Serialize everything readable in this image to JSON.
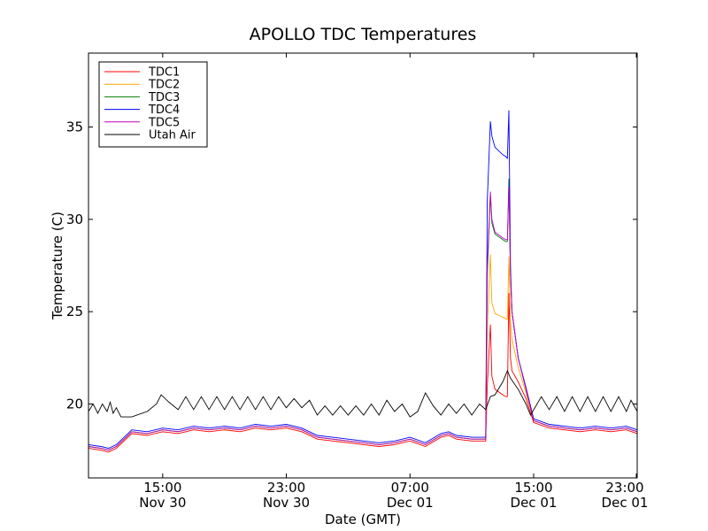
{
  "chart_data": {
    "type": "line",
    "title": "APOLLO TDC Temperatures",
    "xlabel": "Date (GMT)",
    "ylabel": "Temperature (C)",
    "ylim": [
      16,
      39
    ],
    "xlim": [
      10.2,
      45.7
    ],
    "x_unit": "hours since Nov 30 00:00 GMT",
    "yticks": [
      20,
      25,
      30,
      35
    ],
    "xticks": [
      {
        "x": 15,
        "time": "15:00",
        "date": "Nov 30"
      },
      {
        "x": 23,
        "time": "23:00",
        "date": "Nov 30"
      },
      {
        "x": 31,
        "time": "07:00",
        "date": "Dec 01"
      },
      {
        "x": 39,
        "time": "15:00",
        "date": "Dec 01"
      },
      {
        "x": 47,
        "time": "23:00",
        "date": "Dec 01"
      }
    ],
    "legend_position": "top-left",
    "series": [
      {
        "name": "TDC1",
        "color": "#ff0000",
        "x": [
          10.2,
          11.0,
          11.5,
          12.0,
          13.0,
          14.0,
          15.0,
          16.0,
          17.0,
          18.0,
          19.0,
          20.0,
          21.0,
          22.0,
          23.0,
          24.0,
          25.0,
          26.0,
          27.0,
          28.0,
          29.0,
          30.0,
          31.0,
          32.0,
          33.0,
          33.5,
          34.0,
          35.0,
          35.9,
          36.0,
          36.2,
          36.3,
          36.5,
          37.0,
          37.2,
          37.3,
          37.4,
          37.5,
          37.6,
          38.0,
          38.5,
          39.0,
          40.0,
          41.0,
          42.0,
          43.0,
          44.0,
          45.0,
          45.7
        ],
        "y": [
          17.6,
          17.5,
          17.4,
          17.6,
          18.4,
          18.3,
          18.5,
          18.4,
          18.6,
          18.5,
          18.6,
          18.5,
          18.7,
          18.6,
          18.7,
          18.5,
          18.1,
          18.0,
          17.9,
          17.8,
          17.7,
          17.8,
          18.0,
          17.7,
          18.2,
          18.3,
          18.1,
          18.0,
          18.0,
          21.0,
          24.3,
          21.5,
          20.8,
          20.5,
          20.4,
          20.4,
          26.0,
          22.5,
          21.8,
          21.2,
          20.3,
          19.0,
          18.7,
          18.6,
          18.5,
          18.6,
          18.5,
          18.6,
          18.4
        ]
      },
      {
        "name": "TDC2",
        "color": "#ffa500",
        "x": [
          10.2,
          11.0,
          11.5,
          12.0,
          13.0,
          14.0,
          15.0,
          16.0,
          17.0,
          18.0,
          19.0,
          20.0,
          21.0,
          22.0,
          23.0,
          24.0,
          25.0,
          26.0,
          27.0,
          28.0,
          29.0,
          30.0,
          31.0,
          32.0,
          33.0,
          33.5,
          34.0,
          35.0,
          35.9,
          36.0,
          36.2,
          36.3,
          36.5,
          37.0,
          37.2,
          37.3,
          37.4,
          37.5,
          37.6,
          38.0,
          38.5,
          39.0,
          40.0,
          41.0,
          42.0,
          43.0,
          44.0,
          45.0,
          45.7
        ],
        "y": [
          17.7,
          17.6,
          17.5,
          17.7,
          18.5,
          18.4,
          18.6,
          18.5,
          18.7,
          18.6,
          18.7,
          18.6,
          18.8,
          18.7,
          18.8,
          18.6,
          18.2,
          18.1,
          18.0,
          17.9,
          17.8,
          17.9,
          18.1,
          17.8,
          18.3,
          18.4,
          18.2,
          18.1,
          18.1,
          24.0,
          28.1,
          25.5,
          24.9,
          24.7,
          24.6,
          24.6,
          28.0,
          24.5,
          23.5,
          22.0,
          20.6,
          19.1,
          18.8,
          18.7,
          18.6,
          18.7,
          18.6,
          18.7,
          18.5
        ]
      },
      {
        "name": "TDC3",
        "color": "#008000",
        "x": [
          10.2,
          11.0,
          11.5,
          12.0,
          13.0,
          14.0,
          15.0,
          16.0,
          17.0,
          18.0,
          19.0,
          20.0,
          21.0,
          22.0,
          23.0,
          24.0,
          25.0,
          26.0,
          27.0,
          28.0,
          29.0,
          30.0,
          31.0,
          32.0,
          33.0,
          33.5,
          34.0,
          35.0,
          35.9,
          36.0,
          36.2,
          36.3,
          36.5,
          37.0,
          37.2,
          37.3,
          37.4,
          37.5,
          37.6,
          38.0,
          38.5,
          39.0,
          40.0,
          41.0,
          42.0,
          43.0,
          44.0,
          45.0,
          45.7
        ],
        "y": [
          17.7,
          17.6,
          17.5,
          17.7,
          18.5,
          18.4,
          18.6,
          18.5,
          18.7,
          18.6,
          18.7,
          18.6,
          18.8,
          18.7,
          18.8,
          18.6,
          18.2,
          18.1,
          18.0,
          17.9,
          17.8,
          17.9,
          18.1,
          17.8,
          18.3,
          18.4,
          18.2,
          18.1,
          18.1,
          27.0,
          31.3,
          29.8,
          29.2,
          28.9,
          28.8,
          28.8,
          32.2,
          27.0,
          25.0,
          22.5,
          20.8,
          19.1,
          18.8,
          18.7,
          18.6,
          18.7,
          18.6,
          18.7,
          18.5
        ]
      },
      {
        "name": "TDC4",
        "color": "#0000ff",
        "x": [
          10.2,
          11.0,
          11.5,
          12.0,
          13.0,
          14.0,
          15.0,
          16.0,
          17.0,
          18.0,
          19.0,
          20.0,
          21.0,
          22.0,
          23.0,
          24.0,
          25.0,
          26.0,
          27.0,
          28.0,
          29.0,
          30.0,
          31.0,
          32.0,
          33.0,
          33.5,
          34.0,
          35.0,
          35.9,
          36.0,
          36.2,
          36.3,
          36.5,
          37.0,
          37.2,
          37.3,
          37.4,
          37.5,
          37.6,
          38.0,
          38.5,
          39.0,
          40.0,
          41.0,
          42.0,
          43.0,
          44.0,
          45.0,
          45.7
        ],
        "y": [
          17.8,
          17.7,
          17.6,
          17.8,
          18.6,
          18.5,
          18.7,
          18.6,
          18.8,
          18.7,
          18.8,
          18.7,
          18.9,
          18.8,
          18.9,
          18.7,
          18.3,
          18.2,
          18.1,
          18.0,
          17.9,
          18.0,
          18.2,
          17.9,
          18.4,
          18.5,
          18.3,
          18.2,
          18.2,
          31.0,
          35.3,
          34.5,
          33.9,
          33.5,
          33.4,
          33.3,
          35.9,
          27.5,
          25.0,
          22.5,
          20.9,
          19.2,
          18.9,
          18.8,
          18.7,
          18.8,
          18.7,
          18.8,
          18.6
        ]
      },
      {
        "name": "TDC5",
        "color": "#bf00bf",
        "x": [
          10.2,
          11.0,
          11.5,
          12.0,
          13.0,
          14.0,
          15.0,
          16.0,
          17.0,
          18.0,
          19.0,
          20.0,
          21.0,
          22.0,
          23.0,
          24.0,
          25.0,
          26.0,
          27.0,
          28.0,
          29.0,
          30.0,
          31.0,
          32.0,
          33.0,
          33.5,
          34.0,
          35.0,
          35.9,
          36.0,
          36.2,
          36.3,
          36.5,
          37.0,
          37.2,
          37.3,
          37.4,
          37.5,
          37.6,
          38.0,
          38.5,
          39.0,
          40.0,
          41.0,
          42.0,
          43.0,
          44.0,
          45.0,
          45.7
        ],
        "y": [
          17.7,
          17.6,
          17.5,
          17.7,
          18.5,
          18.4,
          18.6,
          18.5,
          18.7,
          18.6,
          18.7,
          18.6,
          18.8,
          18.7,
          18.8,
          18.6,
          18.2,
          18.1,
          18.0,
          17.9,
          17.8,
          17.9,
          18.1,
          17.8,
          18.3,
          18.4,
          18.2,
          18.1,
          18.1,
          27.5,
          31.5,
          30.0,
          29.3,
          29.0,
          28.9,
          28.9,
          31.8,
          27.0,
          25.0,
          22.5,
          20.8,
          19.1,
          18.8,
          18.7,
          18.6,
          18.7,
          18.6,
          18.7,
          18.5
        ]
      },
      {
        "name": "Utah Air",
        "color": "#000000",
        "x": [
          10.2,
          10.5,
          10.8,
          11.1,
          11.4,
          11.6,
          11.8,
          12.0,
          12.3,
          13.0,
          14.0,
          14.6,
          14.9,
          15.4,
          16.0,
          16.5,
          17.0,
          17.5,
          18.0,
          18.5,
          19.0,
          19.5,
          20.0,
          20.5,
          21.0,
          21.5,
          22.0,
          22.5,
          23.0,
          23.5,
          24.0,
          24.5,
          25.0,
          25.5,
          26.0,
          26.5,
          27.0,
          27.5,
          28.0,
          28.5,
          29.0,
          29.5,
          30.0,
          30.5,
          31.0,
          31.5,
          32.0,
          32.5,
          33.0,
          33.5,
          34.0,
          34.5,
          35.0,
          35.5,
          35.9,
          36.2,
          36.5,
          37.0,
          37.3,
          37.5,
          38.0,
          38.5,
          38.8,
          39.5,
          40.0,
          40.5,
          41.0,
          41.5,
          42.0,
          42.5,
          43.0,
          43.5,
          44.0,
          44.5,
          45.0,
          45.3,
          45.7
        ],
        "y": [
          19.6,
          20.0,
          19.5,
          20.0,
          19.6,
          20.1,
          19.5,
          19.8,
          19.3,
          19.3,
          19.6,
          20.0,
          20.5,
          20.1,
          19.7,
          20.4,
          19.7,
          20.4,
          19.7,
          20.4,
          19.7,
          20.4,
          19.7,
          20.4,
          19.7,
          20.4,
          19.7,
          20.4,
          19.8,
          20.3,
          19.8,
          20.2,
          19.4,
          19.9,
          19.4,
          19.9,
          19.4,
          19.9,
          19.4,
          20.0,
          19.4,
          20.2,
          19.6,
          20.0,
          19.3,
          19.6,
          20.6,
          19.9,
          19.4,
          20.0,
          19.5,
          20.0,
          19.4,
          20.0,
          19.7,
          20.4,
          20.5,
          21.2,
          21.8,
          21.4,
          20.8,
          20.0,
          19.4,
          20.4,
          19.7,
          20.4,
          19.6,
          20.4,
          19.6,
          20.4,
          19.6,
          20.4,
          19.6,
          20.4,
          19.6,
          20.2,
          19.6
        ]
      }
    ]
  }
}
